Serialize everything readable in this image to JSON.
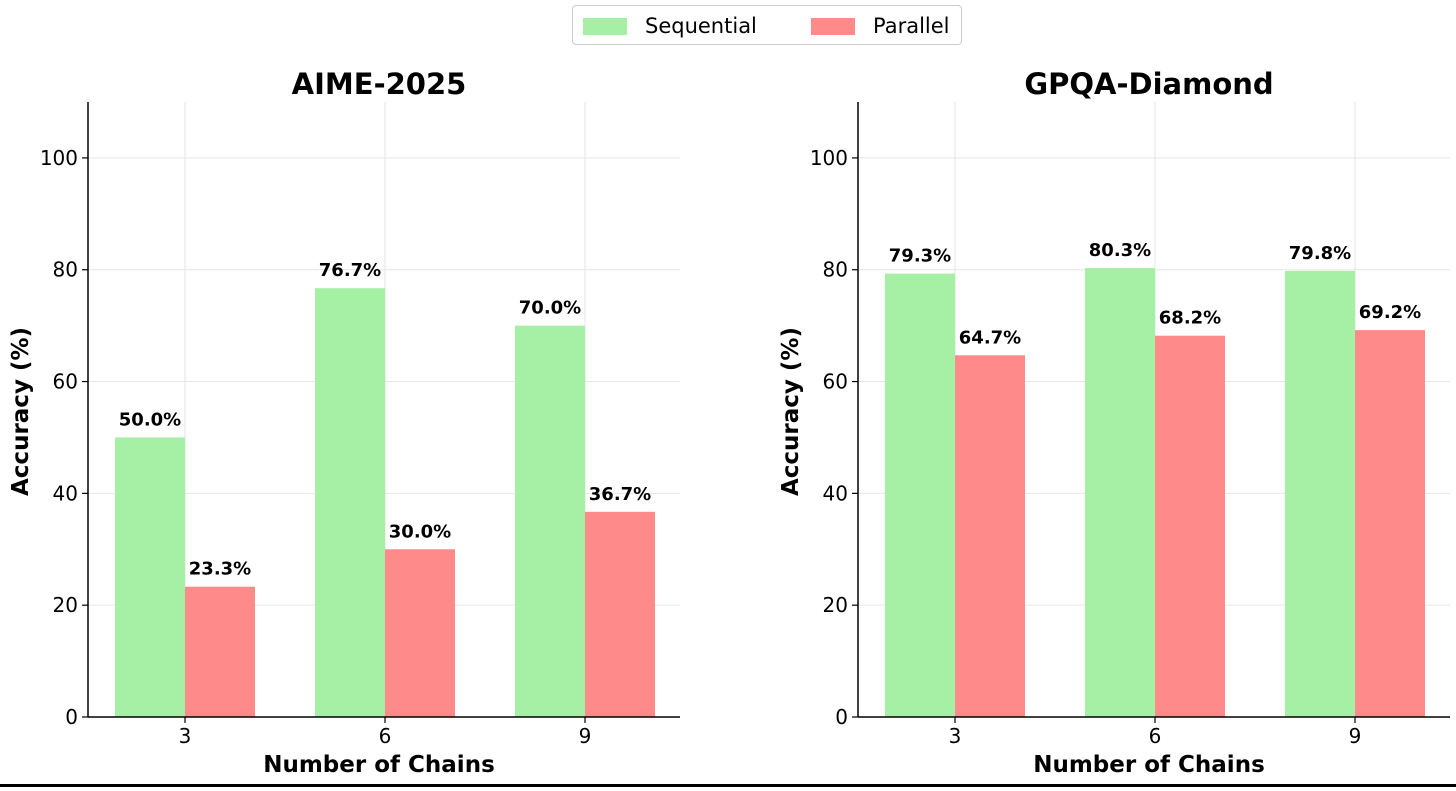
{
  "legend": {
    "items": [
      {
        "label": "Sequential",
        "color": "#a6f0a6"
      },
      {
        "label": "Parallel",
        "color": "#ff8a8a"
      }
    ]
  },
  "chart_data": [
    {
      "type": "bar",
      "title": "AIME-2025",
      "xlabel": "Number of Chains",
      "ylabel": "Accuracy (%)",
      "categories": [
        "3",
        "6",
        "9"
      ],
      "ylim": [
        0,
        110
      ],
      "yticks": [
        0,
        20,
        40,
        60,
        80,
        100
      ],
      "grid": true,
      "series": [
        {
          "name": "Sequential",
          "values": [
            50.0,
            76.7,
            70.0
          ],
          "labels": [
            "50.0%",
            "76.7%",
            "70.0%"
          ]
        },
        {
          "name": "Parallel",
          "values": [
            23.3,
            30.0,
            36.7
          ],
          "labels": [
            "23.3%",
            "30.0%",
            "36.7%"
          ]
        }
      ]
    },
    {
      "type": "bar",
      "title": "GPQA-Diamond",
      "xlabel": "Number of Chains",
      "ylabel": "Accuracy (%)",
      "categories": [
        "3",
        "6",
        "9"
      ],
      "ylim": [
        0,
        110
      ],
      "yticks": [
        0,
        20,
        40,
        60,
        80,
        100
      ],
      "grid": true,
      "series": [
        {
          "name": "Sequential",
          "values": [
            79.3,
            80.3,
            79.8
          ],
          "labels": [
            "79.3%",
            "80.3%",
            "79.8%"
          ]
        },
        {
          "name": "Parallel",
          "values": [
            64.7,
            68.2,
            69.2
          ],
          "labels": [
            "64.7%",
            "68.2%",
            "69.2%"
          ]
        }
      ]
    }
  ]
}
